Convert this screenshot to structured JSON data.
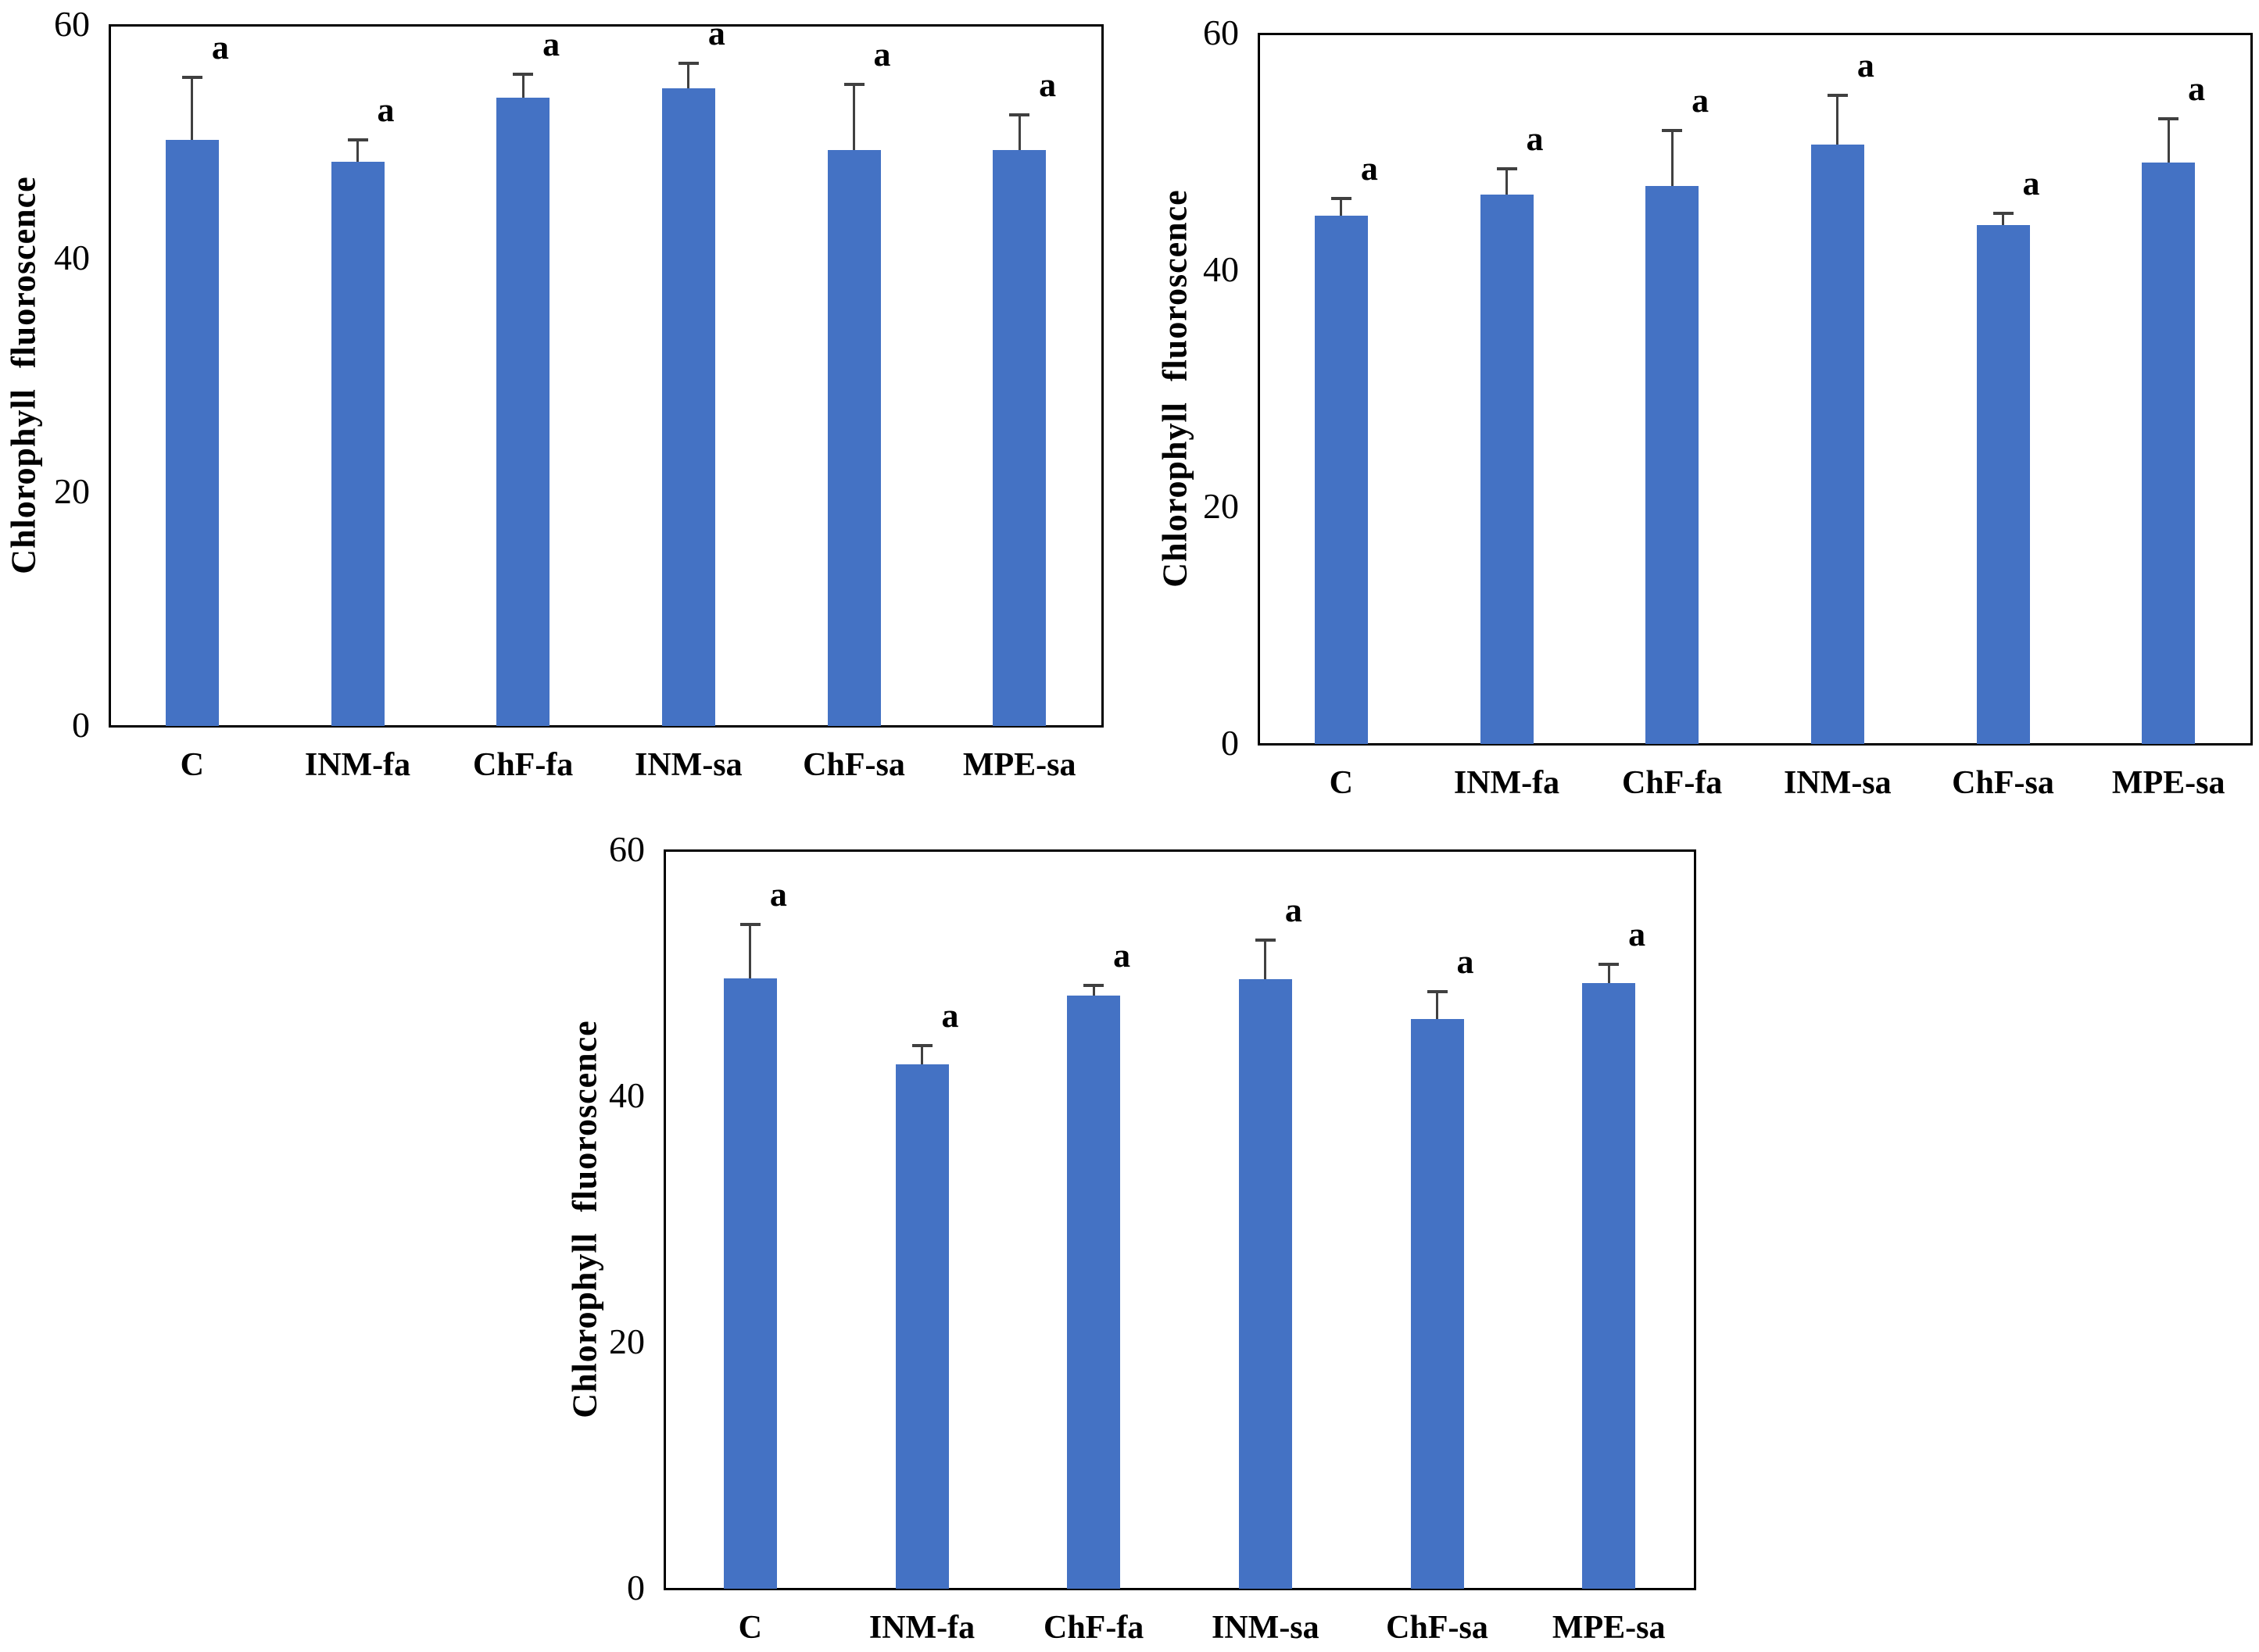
{
  "figure": {
    "background": "#ffffff",
    "bar_color": "#4472C4",
    "error_bar_color": "#404040",
    "axis_color": "#000000",
    "text_color": "#000000"
  },
  "chart_data": [
    {
      "type": "bar",
      "panel": "A",
      "ylabel": "Chlorophyll fluoroscence",
      "xlabel": "",
      "ylim": [
        0,
        60
      ],
      "yticks": [
        0,
        20,
        40,
        60
      ],
      "grid": false,
      "legend": "none",
      "categories": [
        "C",
        "INM-fa",
        "ChF-fa",
        "INM-sa",
        "ChF-sa",
        "MPE-sa"
      ],
      "values": [
        50.2,
        48.3,
        53.8,
        54.6,
        49.3,
        49.3
      ],
      "errors_plus": [
        5.3,
        1.9,
        2.0,
        2.1,
        5.6,
        3.0
      ],
      "sig_labels": [
        "a",
        "a",
        "a",
        "a",
        "a",
        "a"
      ]
    },
    {
      "type": "bar",
      "panel": "B",
      "ylabel": "Chlorophyll fluoroscence",
      "xlabel": "",
      "ylim": [
        0,
        60
      ],
      "yticks": [
        0,
        20,
        40,
        60
      ],
      "grid": false,
      "legend": "none",
      "categories": [
        "C",
        "INM-fa",
        "ChF-fa",
        "INM-sa",
        "ChF-sa",
        "MPE-sa"
      ],
      "values": [
        44.6,
        46.4,
        47.1,
        50.6,
        43.8,
        49.1
      ],
      "errors_plus": [
        1.5,
        2.2,
        4.7,
        4.2,
        1.0,
        3.7
      ],
      "sig_labels": [
        "a",
        "a",
        "a",
        "a",
        "a",
        "a"
      ]
    },
    {
      "type": "bar",
      "panel": "C",
      "ylabel": "Chlorophyll fluoroscence",
      "xlabel": "",
      "ylim": [
        0,
        60
      ],
      "yticks": [
        0,
        20,
        40,
        60
      ],
      "grid": false,
      "legend": "none",
      "categories": [
        "C",
        "INM-fa",
        "ChF-fa",
        "INM-sa",
        "ChF-sa",
        "MPE-sa"
      ],
      "values": [
        49.6,
        42.6,
        48.2,
        49.5,
        46.3,
        49.2
      ],
      "errors_plus": [
        4.4,
        1.5,
        0.8,
        3.2,
        2.2,
        1.5
      ],
      "sig_labels": [
        "a",
        "a",
        "a",
        "a",
        "a",
        "a"
      ]
    }
  ]
}
